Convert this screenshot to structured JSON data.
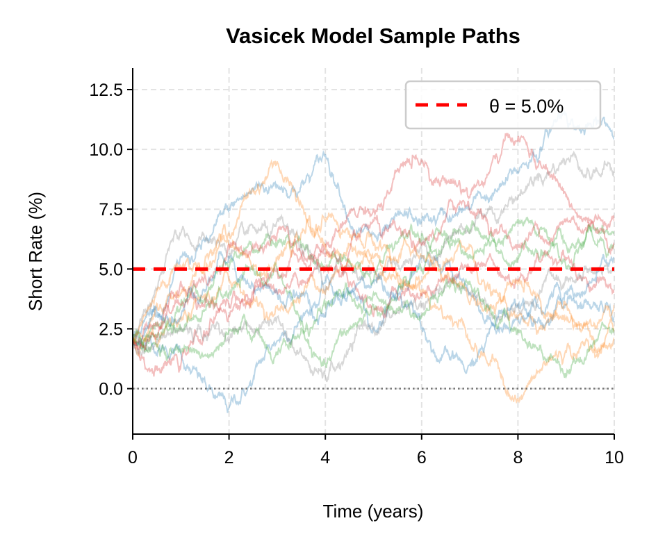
{
  "chart_data": {
    "type": "line",
    "title": "Vasicek Model Sample Paths",
    "xlabel": "Time (years)",
    "ylabel": "Short Rate (%)",
    "xlim": [
      0,
      10
    ],
    "ylim": [
      -1.9,
      13.4
    ],
    "xticks": [
      0,
      2,
      4,
      6,
      8,
      10
    ],
    "xtick_labels": [
      "0",
      "2",
      "4",
      "6",
      "8",
      "10"
    ],
    "yticks": [
      0,
      2.5,
      5,
      7.5,
      10,
      12.5
    ],
    "ytick_labels": [
      "0.0",
      "2.5",
      "5.0",
      "7.5",
      "10.0",
      "12.5"
    ],
    "grid": true,
    "legend_placement": "top-right",
    "legend": [
      {
        "label": "θ = 5.0%",
        "color": "#ff0000",
        "style": "dashed"
      }
    ],
    "reference_lines": [
      {
        "y": 5.0,
        "color": "#ff0000",
        "style": "dashed",
        "label": "θ = 5.0%"
      },
      {
        "y": 0.0,
        "color": "#555555",
        "style": "dotted"
      }
    ],
    "path_alpha": 0.3,
    "x": [
      0,
      1,
      2,
      3,
      4,
      5,
      6,
      7,
      8,
      9,
      10
    ],
    "series": [
      {
        "color": "#1f77b4",
        "values": [
          2.0,
          1.5,
          -0.8,
          2.0,
          4.5,
          2.5,
          5.5,
          4.0,
          3.0,
          3.5,
          3.0
        ]
      },
      {
        "color": "#1f77b4",
        "values": [
          2.0,
          5.5,
          7.5,
          8.5,
          9.8,
          6.5,
          7.0,
          7.5,
          9.0,
          11.5,
          10.5
        ]
      },
      {
        "color": "#ff7f0e",
        "values": [
          2.0,
          4.0,
          6.5,
          9.5,
          6.0,
          5.0,
          4.5,
          6.0,
          3.0,
          3.5,
          2.5
        ]
      },
      {
        "color": "#ff7f0e",
        "values": [
          2.0,
          3.0,
          4.5,
          3.5,
          4.0,
          5.5,
          4.0,
          2.0,
          -0.5,
          1.5,
          2.0
        ]
      },
      {
        "color": "#2ca02c",
        "values": [
          2.0,
          2.5,
          4.0,
          5.0,
          1.0,
          3.5,
          5.0,
          6.5,
          5.5,
          6.0,
          6.0
        ]
      },
      {
        "color": "#2ca02c",
        "values": [
          2.0,
          3.5,
          5.0,
          6.0,
          5.0,
          4.5,
          6.5,
          5.5,
          7.0,
          5.0,
          6.5
        ]
      },
      {
        "color": "#d62728",
        "values": [
          2.0,
          1.0,
          3.0,
          5.0,
          6.0,
          7.5,
          9.5,
          8.0,
          10.5,
          8.0,
          7.0
        ]
      },
      {
        "color": "#d62728",
        "values": [
          2.0,
          4.5,
          3.5,
          4.0,
          5.5,
          3.0,
          4.0,
          5.0,
          4.5,
          5.5,
          4.0
        ]
      },
      {
        "color": "#7f7f7f",
        "values": [
          2.0,
          6.5,
          5.5,
          7.0,
          4.0,
          5.0,
          6.0,
          6.5,
          8.0,
          9.5,
          9.0
        ]
      },
      {
        "color": "#7f7f7f",
        "values": [
          2.0,
          2.5,
          2.0,
          3.0,
          0.5,
          2.5,
          3.5,
          4.0,
          3.5,
          4.5,
          5.0
        ]
      },
      {
        "color": "#1f77b4",
        "values": [
          2.0,
          3.0,
          5.5,
          4.0,
          3.0,
          4.5,
          2.5,
          1.0,
          3.5,
          4.0,
          5.5
        ]
      },
      {
        "color": "#ff7f0e",
        "values": [
          2.0,
          5.0,
          6.0,
          5.5,
          7.0,
          6.0,
          5.5,
          3.5,
          4.5,
          3.0,
          3.5
        ]
      },
      {
        "color": "#2ca02c",
        "values": [
          2.0,
          1.5,
          2.5,
          1.5,
          3.5,
          4.0,
          3.0,
          4.5,
          2.5,
          0.5,
          2.5
        ]
      },
      {
        "color": "#d62728",
        "values": [
          2.0,
          3.5,
          6.0,
          6.5,
          5.0,
          7.0,
          6.0,
          7.5,
          6.0,
          7.0,
          6.0
        ]
      }
    ]
  }
}
